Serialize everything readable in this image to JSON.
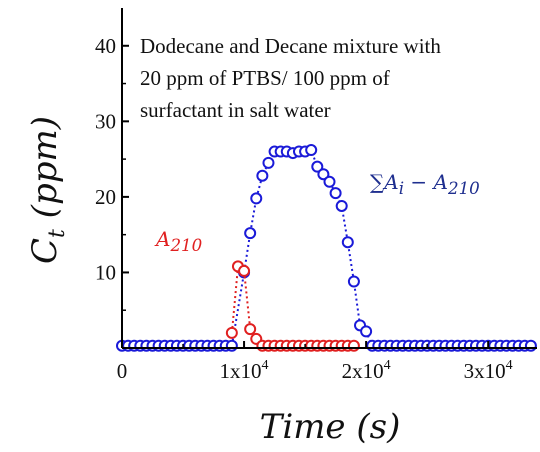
{
  "chart_data": {
    "type": "scatter",
    "xlabel": "Time (s)",
    "ylabel": "C_t (ppm)",
    "xlim": [
      0,
      34000
    ],
    "ylim": [
      0,
      45
    ],
    "x_ticks": [
      {
        "value": 0,
        "label": "0"
      },
      {
        "value": 10000,
        "base": "1x10",
        "exp": "4"
      },
      {
        "value": 20000,
        "base": "2x10",
        "exp": "4"
      },
      {
        "value": 30000,
        "base": "3x10",
        "exp": "4"
      }
    ],
    "y_ticks": [
      10,
      20,
      30,
      40
    ],
    "annotation": [
      "Dodecane and Decane mixture with",
      "20 ppm of PTBS/ 100 ppm of",
      "surfactant in salt water"
    ],
    "series": [
      {
        "name": "∑A_i − A_210",
        "label_parts": {
          "pre": "∑A",
          "sub1": "i",
          "mid": " − A",
          "sub2": "210"
        },
        "color": "#1a1ad8",
        "label_color": "#1f2f8f",
        "points": [
          [
            0,
            0.3
          ],
          [
            500,
            0.3
          ],
          [
            1000,
            0.3
          ],
          [
            1500,
            0.3
          ],
          [
            2000,
            0.3
          ],
          [
            2500,
            0.3
          ],
          [
            3000,
            0.3
          ],
          [
            3500,
            0.3
          ],
          [
            4000,
            0.3
          ],
          [
            4500,
            0.3
          ],
          [
            5000,
            0.3
          ],
          [
            5500,
            0.3
          ],
          [
            6000,
            0.3
          ],
          [
            6500,
            0.3
          ],
          [
            7000,
            0.3
          ],
          [
            7500,
            0.3
          ],
          [
            8000,
            0.3
          ],
          [
            8500,
            0.3
          ],
          [
            9000,
            0.3
          ],
          [
            10000,
            10
          ],
          [
            10500,
            15.2
          ],
          [
            11000,
            19.8
          ],
          [
            11500,
            22.8
          ],
          [
            12000,
            24.5
          ],
          [
            12500,
            26
          ],
          [
            13000,
            26
          ],
          [
            13500,
            26
          ],
          [
            14000,
            25.8
          ],
          [
            14500,
            26
          ],
          [
            15000,
            26
          ],
          [
            15500,
            26.2
          ],
          [
            16000,
            24
          ],
          [
            16500,
            23
          ],
          [
            17000,
            22
          ],
          [
            17500,
            20.5
          ],
          [
            18000,
            18.8
          ],
          [
            18500,
            14
          ],
          [
            19000,
            8.8
          ],
          [
            19500,
            3
          ],
          [
            20000,
            2.2
          ],
          [
            20500,
            0.3
          ],
          [
            21000,
            0.3
          ],
          [
            21500,
            0.3
          ],
          [
            22000,
            0.3
          ],
          [
            22500,
            0.3
          ],
          [
            23000,
            0.3
          ],
          [
            23500,
            0.3
          ],
          [
            24000,
            0.3
          ],
          [
            24500,
            0.3
          ],
          [
            25000,
            0.3
          ],
          [
            25500,
            0.3
          ],
          [
            26000,
            0.3
          ],
          [
            26500,
            0.3
          ],
          [
            27000,
            0.3
          ],
          [
            27500,
            0.3
          ],
          [
            28000,
            0.3
          ],
          [
            28500,
            0.3
          ],
          [
            29000,
            0.3
          ],
          [
            29500,
            0.3
          ],
          [
            30000,
            0.3
          ],
          [
            30500,
            0.3
          ],
          [
            31000,
            0.3
          ],
          [
            31500,
            0.3
          ],
          [
            32000,
            0.3
          ],
          [
            32500,
            0.3
          ],
          [
            33000,
            0.3
          ],
          [
            33500,
            0.3
          ]
        ]
      },
      {
        "name": "A_210",
        "label_parts": {
          "pre": "A",
          "sub1": "210",
          "mid": "",
          "sub2": ""
        },
        "color": "#e02020",
        "label_color": "#e02020",
        "points": [
          [
            9000,
            2
          ],
          [
            9500,
            10.8
          ],
          [
            10000,
            10.2
          ],
          [
            10500,
            2.5
          ],
          [
            11000,
            1.2
          ],
          [
            11500,
            0.3
          ],
          [
            12000,
            0.3
          ],
          [
            12500,
            0.3
          ],
          [
            13000,
            0.3
          ],
          [
            13500,
            0.3
          ],
          [
            14000,
            0.3
          ],
          [
            14500,
            0.3
          ],
          [
            15000,
            0.3
          ],
          [
            15500,
            0.3
          ],
          [
            16000,
            0.3
          ],
          [
            16500,
            0.3
          ],
          [
            17000,
            0.3
          ],
          [
            17500,
            0.3
          ],
          [
            18000,
            0.3
          ],
          [
            18500,
            0.3
          ],
          [
            19000,
            0.3
          ]
        ]
      }
    ]
  }
}
